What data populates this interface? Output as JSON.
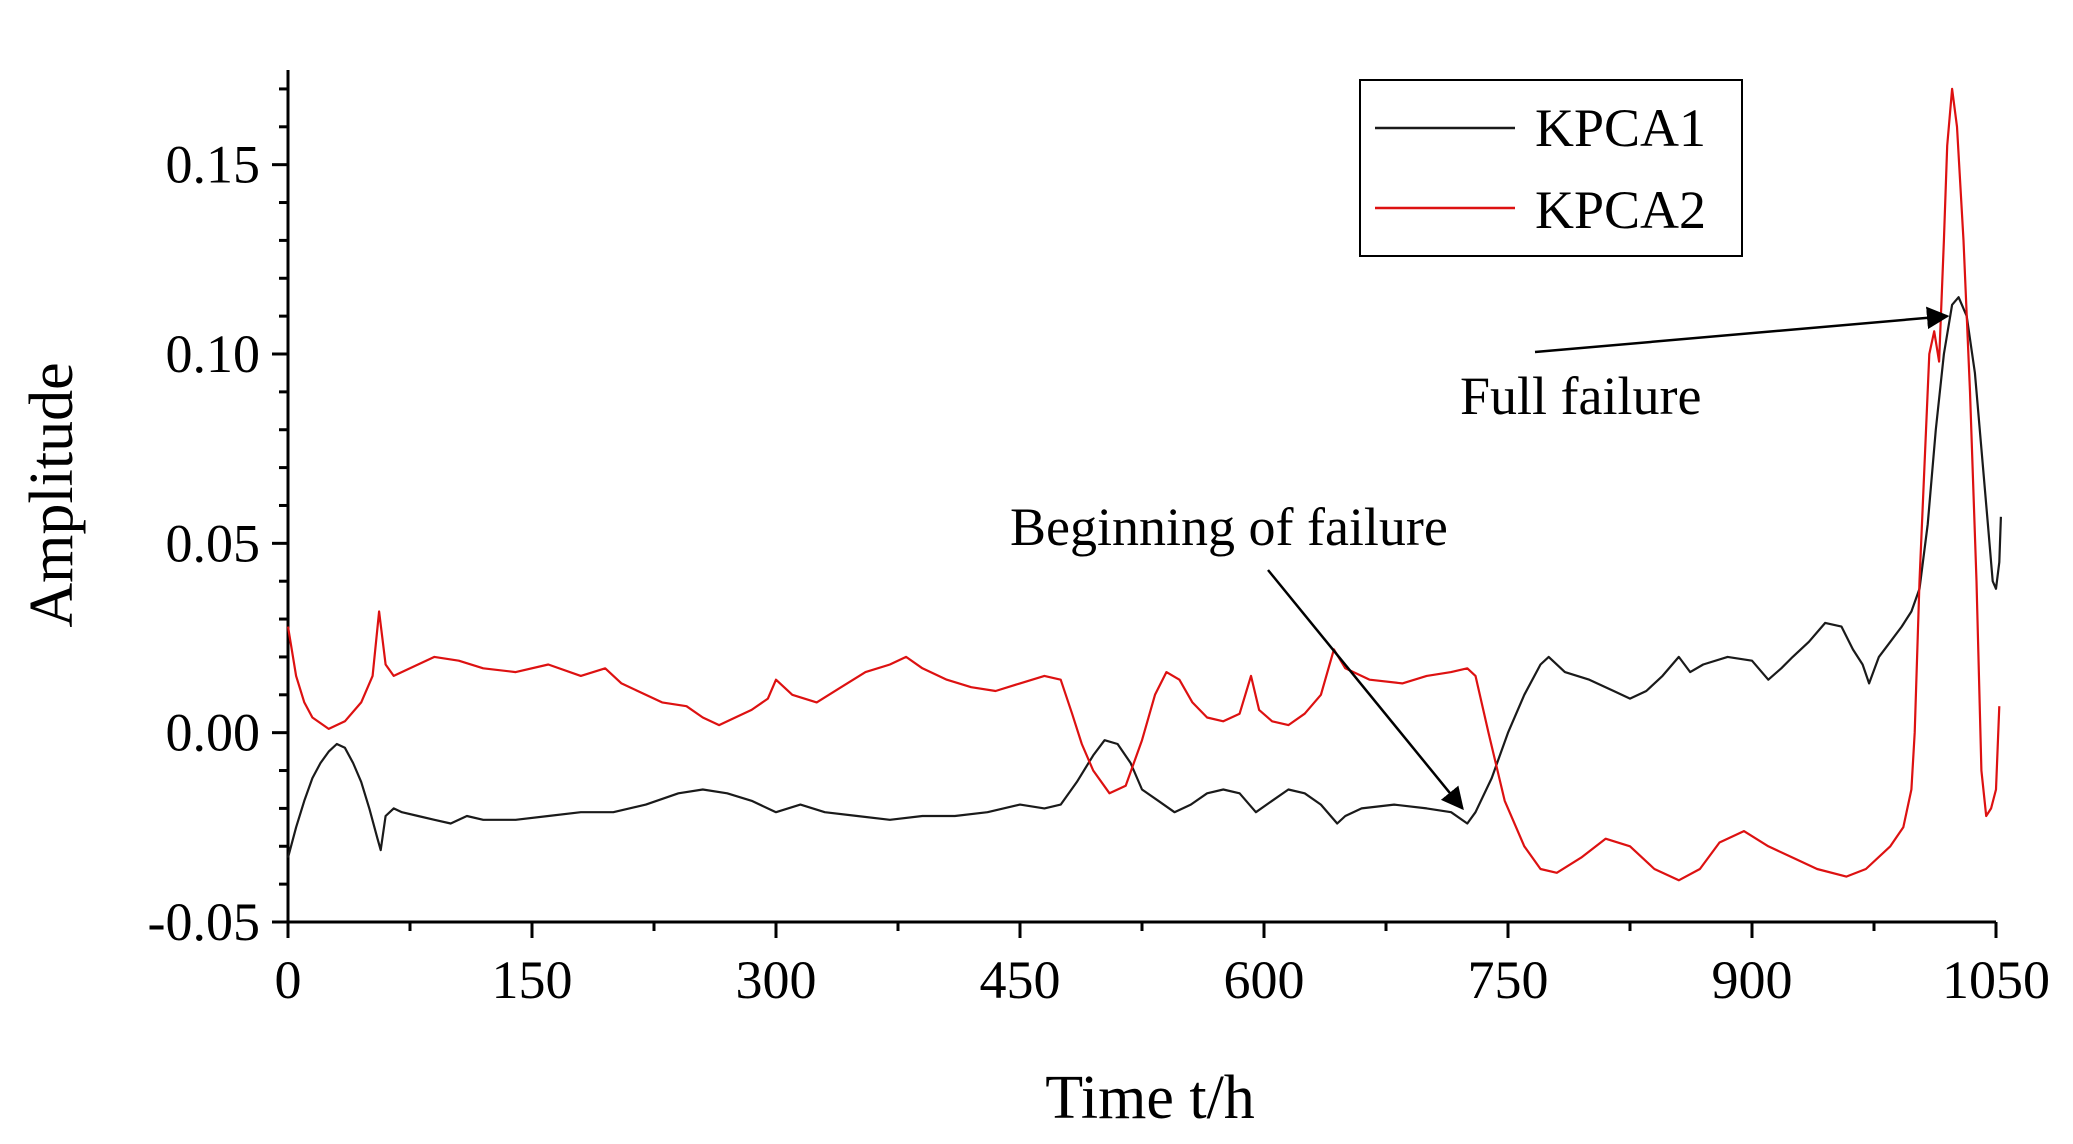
{
  "chart_data": {
    "type": "line",
    "title": "",
    "xlabel": "Time t/h",
    "ylabel": "Amplitude",
    "xlim": [
      0,
      1050
    ],
    "ylim": [
      -0.05,
      0.175
    ],
    "x_ticks": [
      0,
      150,
      300,
      450,
      600,
      750,
      900,
      1050
    ],
    "x_tick_labels": [
      "0",
      "150",
      "300",
      "450",
      "600",
      "750",
      "900",
      "1050"
    ],
    "y_ticks": [
      -0.05,
      0.0,
      0.05,
      0.1,
      0.15
    ],
    "y_tick_labels": [
      "-0.05",
      "0.00",
      "0.05",
      "0.10",
      "0.15"
    ],
    "legend_position": "top-right",
    "series": [
      {
        "name": "KPCA1",
        "color": "#1a1a1a",
        "points": [
          [
            0,
            -0.033
          ],
          [
            5,
            -0.025
          ],
          [
            10,
            -0.018
          ],
          [
            15,
            -0.012
          ],
          [
            20,
            -0.008
          ],
          [
            25,
            -0.005
          ],
          [
            30,
            -0.003
          ],
          [
            35,
            -0.004
          ],
          [
            40,
            -0.008
          ],
          [
            45,
            -0.013
          ],
          [
            50,
            -0.02
          ],
          [
            55,
            -0.028
          ],
          [
            57,
            -0.031
          ],
          [
            60,
            -0.022
          ],
          [
            65,
            -0.02
          ],
          [
            70,
            -0.021
          ],
          [
            80,
            -0.022
          ],
          [
            90,
            -0.023
          ],
          [
            100,
            -0.024
          ],
          [
            110,
            -0.022
          ],
          [
            120,
            -0.023
          ],
          [
            140,
            -0.023
          ],
          [
            160,
            -0.022
          ],
          [
            180,
            -0.021
          ],
          [
            200,
            -0.021
          ],
          [
            220,
            -0.019
          ],
          [
            240,
            -0.016
          ],
          [
            255,
            -0.015
          ],
          [
            270,
            -0.016
          ],
          [
            285,
            -0.018
          ],
          [
            300,
            -0.021
          ],
          [
            315,
            -0.019
          ],
          [
            330,
            -0.021
          ],
          [
            350,
            -0.022
          ],
          [
            370,
            -0.023
          ],
          [
            390,
            -0.022
          ],
          [
            410,
            -0.022
          ],
          [
            430,
            -0.021
          ],
          [
            450,
            -0.019
          ],
          [
            465,
            -0.02
          ],
          [
            475,
            -0.019
          ],
          [
            485,
            -0.013
          ],
          [
            495,
            -0.006
          ],
          [
            502,
            -0.002
          ],
          [
            510,
            -0.003
          ],
          [
            518,
            -0.008
          ],
          [
            525,
            -0.015
          ],
          [
            535,
            -0.018
          ],
          [
            545,
            -0.021
          ],
          [
            555,
            -0.019
          ],
          [
            565,
            -0.016
          ],
          [
            575,
            -0.015
          ],
          [
            585,
            -0.016
          ],
          [
            595,
            -0.021
          ],
          [
            605,
            -0.018
          ],
          [
            615,
            -0.015
          ],
          [
            625,
            -0.016
          ],
          [
            635,
            -0.019
          ],
          [
            645,
            -0.024
          ],
          [
            650,
            -0.022
          ],
          [
            660,
            -0.02
          ],
          [
            680,
            -0.019
          ],
          [
            700,
            -0.02
          ],
          [
            715,
            -0.021
          ],
          [
            725,
            -0.024
          ],
          [
            730,
            -0.021
          ],
          [
            740,
            -0.012
          ],
          [
            750,
            0.0
          ],
          [
            760,
            0.01
          ],
          [
            770,
            0.018
          ],
          [
            775,
            0.02
          ],
          [
            785,
            0.016
          ],
          [
            800,
            0.014
          ],
          [
            815,
            0.011
          ],
          [
            825,
            0.009
          ],
          [
            835,
            0.011
          ],
          [
            845,
            0.015
          ],
          [
            855,
            0.02
          ],
          [
            862,
            0.016
          ],
          [
            870,
            0.018
          ],
          [
            885,
            0.02
          ],
          [
            900,
            0.019
          ],
          [
            910,
            0.014
          ],
          [
            918,
            0.017
          ],
          [
            925,
            0.02
          ],
          [
            935,
            0.024
          ],
          [
            945,
            0.029
          ],
          [
            955,
            0.028
          ],
          [
            962,
            0.022
          ],
          [
            968,
            0.018
          ],
          [
            972,
            0.013
          ],
          [
            978,
            0.02
          ],
          [
            985,
            0.024
          ],
          [
            992,
            0.028
          ],
          [
            998,
            0.032
          ],
          [
            1003,
            0.038
          ],
          [
            1008,
            0.055
          ],
          [
            1013,
            0.08
          ],
          [
            1018,
            0.1
          ],
          [
            1023,
            0.113
          ],
          [
            1027,
            0.115
          ],
          [
            1032,
            0.11
          ],
          [
            1037,
            0.095
          ],
          [
            1041,
            0.075
          ],
          [
            1045,
            0.055
          ],
          [
            1048,
            0.04
          ],
          [
            1050,
            0.038
          ],
          [
            1052,
            0.045
          ],
          [
            1053,
            0.057
          ]
        ]
      },
      {
        "name": "KPCA2",
        "color": "#dd1111",
        "points": [
          [
            0,
            0.028
          ],
          [
            5,
            0.015
          ],
          [
            10,
            0.008
          ],
          [
            15,
            0.004
          ],
          [
            25,
            0.001
          ],
          [
            35,
            0.003
          ],
          [
            45,
            0.008
          ],
          [
            52,
            0.015
          ],
          [
            56,
            0.032
          ],
          [
            60,
            0.018
          ],
          [
            65,
            0.015
          ],
          [
            75,
            0.017
          ],
          [
            90,
            0.02
          ],
          [
            105,
            0.019
          ],
          [
            120,
            0.017
          ],
          [
            140,
            0.016
          ],
          [
            160,
            0.018
          ],
          [
            180,
            0.015
          ],
          [
            195,
            0.017
          ],
          [
            205,
            0.013
          ],
          [
            215,
            0.011
          ],
          [
            230,
            0.008
          ],
          [
            245,
            0.007
          ],
          [
            255,
            0.004
          ],
          [
            265,
            0.002
          ],
          [
            275,
            0.004
          ],
          [
            285,
            0.006
          ],
          [
            295,
            0.009
          ],
          [
            300,
            0.014
          ],
          [
            310,
            0.01
          ],
          [
            325,
            0.008
          ],
          [
            340,
            0.012
          ],
          [
            355,
            0.016
          ],
          [
            370,
            0.018
          ],
          [
            380,
            0.02
          ],
          [
            390,
            0.017
          ],
          [
            405,
            0.014
          ],
          [
            420,
            0.012
          ],
          [
            435,
            0.011
          ],
          [
            450,
            0.013
          ],
          [
            465,
            0.015
          ],
          [
            475,
            0.014
          ],
          [
            482,
            0.005
          ],
          [
            488,
            -0.003
          ],
          [
            495,
            -0.01
          ],
          [
            505,
            -0.016
          ],
          [
            515,
            -0.014
          ],
          [
            525,
            -0.002
          ],
          [
            533,
            0.01
          ],
          [
            540,
            0.016
          ],
          [
            548,
            0.014
          ],
          [
            556,
            0.008
          ],
          [
            565,
            0.004
          ],
          [
            575,
            0.003
          ],
          [
            585,
            0.005
          ],
          [
            592,
            0.015
          ],
          [
            597,
            0.006
          ],
          [
            605,
            0.003
          ],
          [
            615,
            0.002
          ],
          [
            625,
            0.005
          ],
          [
            635,
            0.01
          ],
          [
            643,
            0.022
          ],
          [
            650,
            0.017
          ],
          [
            665,
            0.014
          ],
          [
            685,
            0.013
          ],
          [
            700,
            0.015
          ],
          [
            715,
            0.016
          ],
          [
            725,
            0.017
          ],
          [
            730,
            0.015
          ],
          [
            738,
            0.0
          ],
          [
            748,
            -0.018
          ],
          [
            760,
            -0.03
          ],
          [
            770,
            -0.036
          ],
          [
            780,
            -0.037
          ],
          [
            795,
            -0.033
          ],
          [
            810,
            -0.028
          ],
          [
            825,
            -0.03
          ],
          [
            840,
            -0.036
          ],
          [
            855,
            -0.039
          ],
          [
            868,
            -0.036
          ],
          [
            880,
            -0.029
          ],
          [
            895,
            -0.026
          ],
          [
            910,
            -0.03
          ],
          [
            925,
            -0.033
          ],
          [
            940,
            -0.036
          ],
          [
            958,
            -0.038
          ],
          [
            970,
            -0.036
          ],
          [
            985,
            -0.03
          ],
          [
            993,
            -0.025
          ],
          [
            998,
            -0.015
          ],
          [
            1000,
            0.0
          ],
          [
            1003,
            0.04
          ],
          [
            1006,
            0.07
          ],
          [
            1009,
            0.1
          ],
          [
            1012,
            0.106
          ],
          [
            1015,
            0.098
          ],
          [
            1018,
            0.13
          ],
          [
            1020,
            0.155
          ],
          [
            1023,
            0.17
          ],
          [
            1026,
            0.16
          ],
          [
            1030,
            0.13
          ],
          [
            1034,
            0.09
          ],
          [
            1038,
            0.04
          ],
          [
            1041,
            -0.01
          ],
          [
            1044,
            -0.022
          ],
          [
            1047,
            -0.02
          ],
          [
            1050,
            -0.015
          ],
          [
            1052,
            0.007
          ]
        ]
      }
    ],
    "annotations": [
      {
        "text": "Full failure",
        "arrow_to": [
          1020,
          0.11
        ]
      },
      {
        "text": "Beginning of failure",
        "arrow_to": [
          722,
          -0.02
        ]
      }
    ]
  }
}
